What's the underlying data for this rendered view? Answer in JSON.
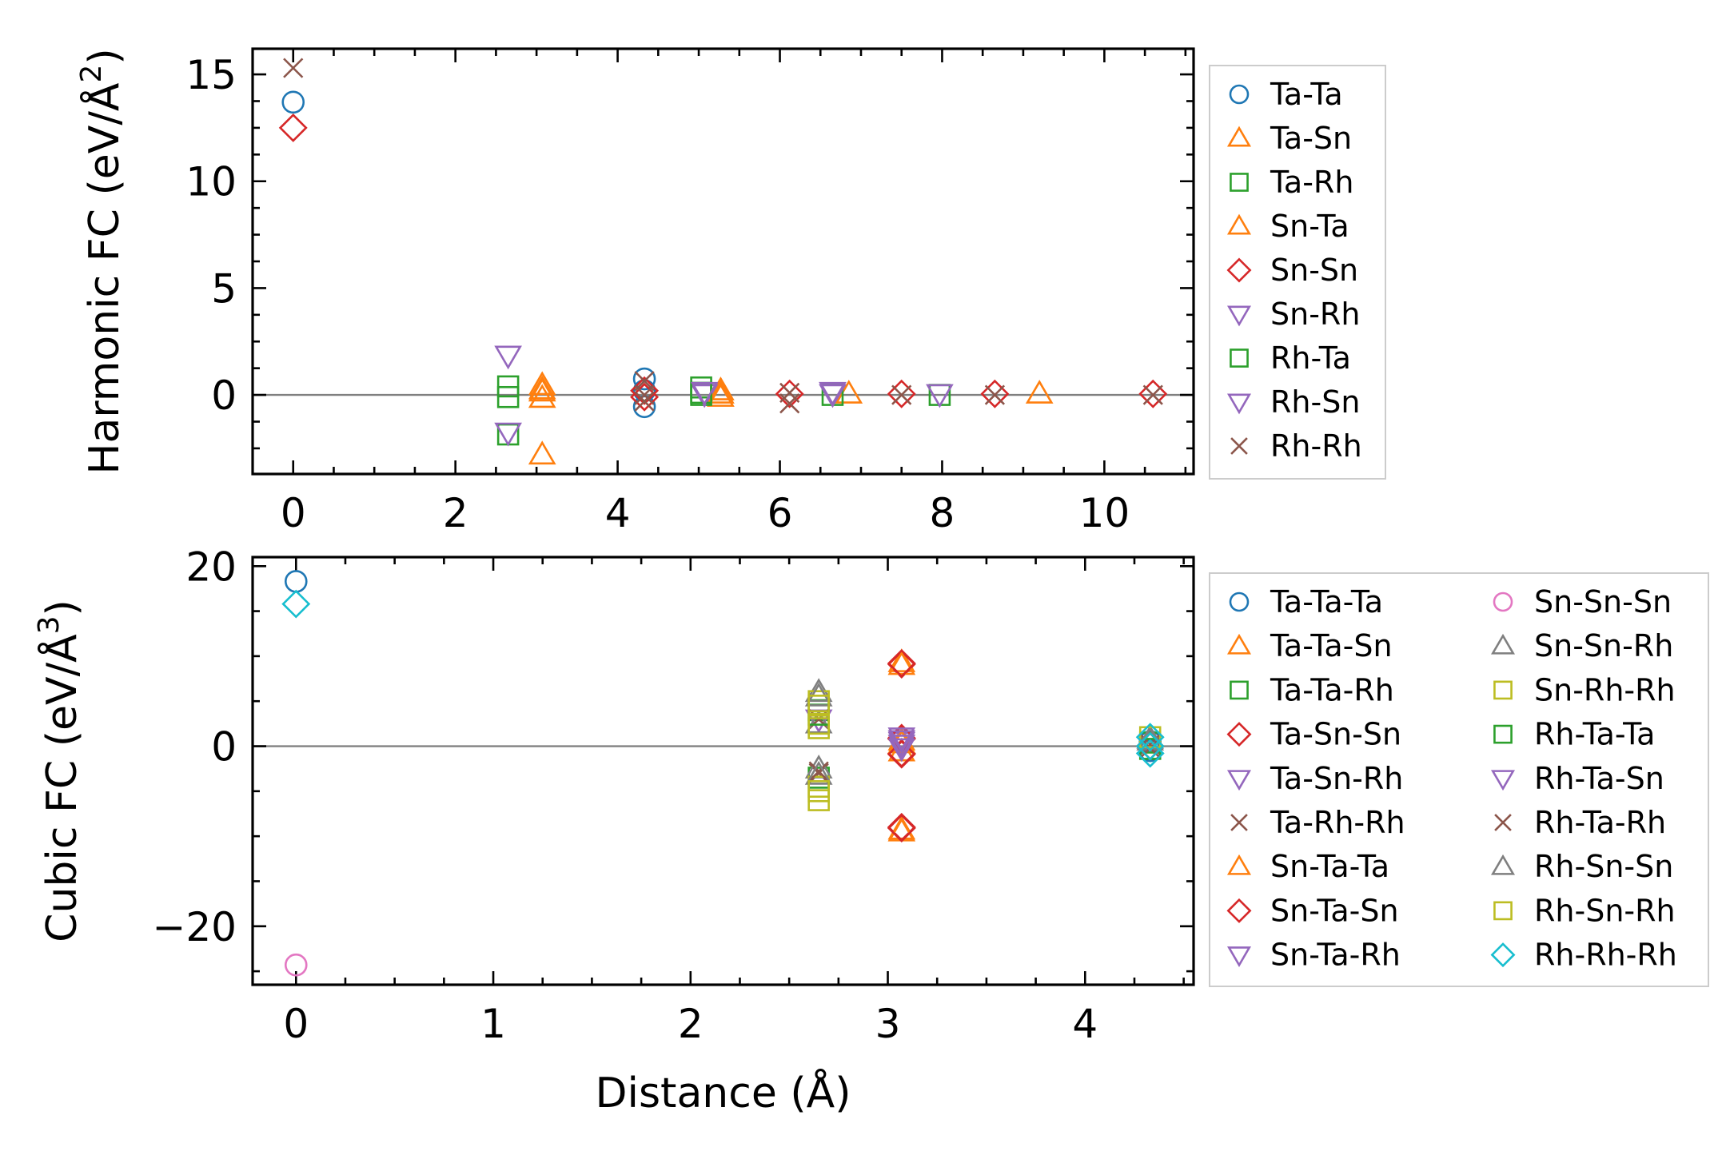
{
  "chart_data": [
    {
      "type": "scatter",
      "ylabel": "Harmonic FC (eV/Å²)",
      "ylabel_parts": [
        "Harmonic FC (eV/Å",
        "2",
        ")"
      ],
      "xlabel": "",
      "xlim": [
        -0.5,
        11.1
      ],
      "ylim": [
        -3.7,
        16.2
      ],
      "xticks": [
        0,
        2,
        4,
        6,
        8,
        10
      ],
      "xtick_labels": [
        "0",
        "2",
        "4",
        "6",
        "8",
        "10"
      ],
      "yticks": [
        0,
        5,
        10,
        15
      ],
      "ytick_labels": [
        "0",
        "5",
        "10",
        "15"
      ],
      "zero_line": true,
      "legend_columns": 1,
      "series": [
        {
          "name": "Ta-Ta",
          "marker": "circle",
          "color": "#1f77b4",
          "points": [
            [
              0,
              13.7
            ],
            [
              4.33,
              0.75
            ],
            [
              4.33,
              0.2
            ],
            [
              4.33,
              -0.55
            ]
          ]
        },
        {
          "name": "Ta-Sn",
          "marker": "triangle-up",
          "color": "#ff7f0e",
          "points": [
            [
              3.07,
              0.45
            ],
            [
              3.07,
              0.15
            ],
            [
              3.07,
              -0.15
            ],
            [
              3.07,
              -2.8
            ],
            [
              5.27,
              0.2
            ],
            [
              5.27,
              -0.1
            ],
            [
              6.85,
              0.05
            ],
            [
              9.2,
              0.05
            ]
          ]
        },
        {
          "name": "Ta-Rh",
          "marker": "square",
          "color": "#2ca02c",
          "points": [
            [
              2.65,
              0.4
            ],
            [
              2.65,
              -0.1
            ],
            [
              2.65,
              -1.85
            ],
            [
              5.03,
              0.35
            ],
            [
              5.03,
              0.0
            ],
            [
              6.65,
              0.0
            ],
            [
              7.97,
              0.0
            ]
          ]
        },
        {
          "name": "Sn-Ta",
          "marker": "triangle-up",
          "color": "#ff7f0e",
          "points": [
            [
              3.07,
              0.25
            ],
            [
              5.27,
              0.05
            ]
          ]
        },
        {
          "name": "Sn-Sn",
          "marker": "diamond",
          "color": "#d62728",
          "points": [
            [
              0,
              12.5
            ],
            [
              4.33,
              0.2
            ],
            [
              4.33,
              -0.1
            ],
            [
              6.12,
              0.05
            ],
            [
              7.5,
              0.05
            ],
            [
              8.65,
              0.05
            ],
            [
              10.6,
              0.05
            ]
          ]
        },
        {
          "name": "Sn-Rh",
          "marker": "triangle-down",
          "color": "#9467bd",
          "points": [
            [
              2.65,
              1.85
            ],
            [
              2.65,
              -1.75
            ],
            [
              5.07,
              0.05
            ],
            [
              6.65,
              0.05
            ],
            [
              7.97,
              0.05
            ]
          ]
        },
        {
          "name": "Rh-Ta",
          "marker": "square",
          "color": "#2ca02c",
          "points": [
            [
              5.03,
              0.1
            ]
          ]
        },
        {
          "name": "Rh-Sn",
          "marker": "triangle-down",
          "color": "#9467bd",
          "points": [
            [
              5.07,
              0.15
            ],
            [
              6.65,
              0.15
            ]
          ]
        },
        {
          "name": "Rh-Rh",
          "marker": "x",
          "color": "#8c564b",
          "points": [
            [
              0,
              15.3
            ],
            [
              4.33,
              0.65
            ],
            [
              4.33,
              0.0
            ],
            [
              4.33,
              -0.3
            ],
            [
              6.12,
              0.1
            ],
            [
              6.12,
              -0.4
            ],
            [
              7.5,
              0.0
            ],
            [
              8.65,
              0.0
            ],
            [
              10.6,
              0.0
            ]
          ]
        }
      ]
    },
    {
      "type": "scatter",
      "ylabel": "Cubic FC (eV/Å³)",
      "ylabel_parts": [
        "Cubic FC (eV/Å",
        "3",
        ")"
      ],
      "xlabel": "Distance (Å)",
      "xlim": [
        -0.22,
        4.55
      ],
      "ylim": [
        -26.5,
        21
      ],
      "xticks": [
        0,
        1,
        2,
        3,
        4
      ],
      "xtick_labels": [
        "0",
        "1",
        "2",
        "3",
        "4"
      ],
      "yticks": [
        -20,
        0,
        20
      ],
      "ytick_labels": [
        "−20",
        "0",
        "20"
      ],
      "zero_line": true,
      "legend_columns": 2,
      "series": [
        {
          "name": "Ta-Ta-Ta",
          "marker": "circle",
          "color": "#1f77b4",
          "points": [
            [
              0,
              18.3
            ],
            [
              4.33,
              0.5
            ],
            [
              4.33,
              -0.5
            ]
          ]
        },
        {
          "name": "Ta-Ta-Sn",
          "marker": "triangle-up",
          "color": "#ff7f0e",
          "points": [
            [
              3.07,
              9.3
            ],
            [
              3.07,
              -9.3
            ],
            [
              3.07,
              0.6
            ],
            [
              3.07,
              -0.6
            ]
          ]
        },
        {
          "name": "Ta-Ta-Rh",
          "marker": "square",
          "color": "#2ca02c",
          "points": [
            [
              2.65,
              4.0
            ],
            [
              2.65,
              -3.5
            ],
            [
              4.33,
              0.4
            ]
          ]
        },
        {
          "name": "Ta-Sn-Sn",
          "marker": "diamond",
          "color": "#d62728",
          "points": [
            [
              3.07,
              9.1
            ],
            [
              3.07,
              -9.0
            ],
            [
              3.07,
              0.8
            ],
            [
              3.07,
              -0.8
            ],
            [
              4.33,
              0.0
            ]
          ]
        },
        {
          "name": "Ta-Sn-Rh",
          "marker": "triangle-down",
          "color": "#9467bd",
          "points": [
            [
              2.65,
              3.0
            ],
            [
              3.07,
              0.5
            ]
          ]
        },
        {
          "name": "Ta-Rh-Rh",
          "marker": "x",
          "color": "#8c564b",
          "points": [
            [
              2.65,
              3.0
            ],
            [
              2.65,
              -3.0
            ],
            [
              4.33,
              0.2
            ]
          ]
        },
        {
          "name": "Sn-Ta-Ta",
          "marker": "triangle-up",
          "color": "#ff7f0e",
          "points": [
            [
              3.07,
              9.0
            ],
            [
              3.07,
              -9.5
            ],
            [
              3.07,
              0.3
            ]
          ]
        },
        {
          "name": "Sn-Ta-Sn",
          "marker": "diamond",
          "color": "#d62728",
          "points": [
            [
              3.07,
              9.2
            ],
            [
              3.07,
              -9.1
            ],
            [
              3.07,
              0.9
            ],
            [
              3.07,
              -0.9
            ]
          ]
        },
        {
          "name": "Sn-Ta-Rh",
          "marker": "triangle-down",
          "color": "#9467bd",
          "points": [
            [
              3.07,
              1.0
            ],
            [
              3.07,
              0.2
            ]
          ]
        },
        {
          "name": "Sn-Sn-Sn",
          "marker": "circle",
          "color": "#e377c2",
          "points": [
            [
              0,
              -24.3
            ]
          ]
        },
        {
          "name": "Sn-Sn-Rh",
          "marker": "triangle-up",
          "color": "#7f7f7f",
          "points": [
            [
              2.65,
              6.0
            ],
            [
              2.65,
              2.5
            ],
            [
              2.65,
              -2.5
            ],
            [
              4.33,
              0.6
            ]
          ]
        },
        {
          "name": "Sn-Rh-Rh",
          "marker": "square",
          "color": "#bcbd22",
          "points": [
            [
              2.65,
              5.0
            ],
            [
              2.65,
              2.0
            ],
            [
              2.65,
              -4.5
            ],
            [
              2.65,
              -6.0
            ]
          ]
        },
        {
          "name": "Rh-Ta-Ta",
          "marker": "square",
          "color": "#2ca02c",
          "points": [
            [
              2.65,
              3.5
            ],
            [
              4.33,
              -0.3
            ]
          ]
        },
        {
          "name": "Rh-Ta-Sn",
          "marker": "triangle-down",
          "color": "#9467bd",
          "points": [
            [
              3.07,
              0.7
            ],
            [
              3.07,
              -0.2
            ]
          ]
        },
        {
          "name": "Rh-Ta-Rh",
          "marker": "x",
          "color": "#8c564b",
          "points": [
            [
              2.65,
              -2.8
            ],
            [
              4.33,
              -0.2
            ]
          ]
        },
        {
          "name": "Rh-Sn-Sn",
          "marker": "triangle-up",
          "color": "#7f7f7f",
          "points": [
            [
              2.65,
              5.5
            ],
            [
              2.65,
              -3.2
            ],
            [
              4.33,
              0.8
            ]
          ]
        },
        {
          "name": "Rh-Sn-Rh",
          "marker": "square",
          "color": "#bcbd22",
          "points": [
            [
              2.65,
              4.5
            ],
            [
              2.65,
              2.5
            ],
            [
              2.65,
              -5.0
            ],
            [
              4.33,
              1.0
            ]
          ]
        },
        {
          "name": "Rh-Rh-Rh",
          "marker": "diamond",
          "color": "#17becf",
          "points": [
            [
              0,
              15.8
            ],
            [
              4.33,
              1.0
            ],
            [
              4.33,
              0.0
            ],
            [
              4.33,
              -0.8
            ]
          ]
        }
      ]
    }
  ]
}
